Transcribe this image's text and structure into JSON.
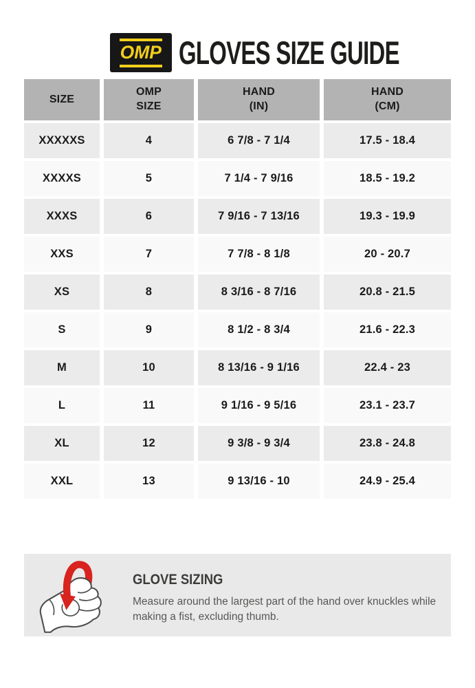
{
  "header": {
    "logo_text": "OMP",
    "title": "GLOVES SIZE GUIDE"
  },
  "table": {
    "columns": [
      "SIZE",
      "OMP\nSIZE",
      "HAND\n(IN)",
      "HAND\n(CM)"
    ],
    "rows": [
      {
        "size": "XXXXXS",
        "omp_size": "4",
        "hand_in": "6 7/8 - 7 1/4",
        "hand_cm": "17.5 - 18.4"
      },
      {
        "size": "XXXXS",
        "omp_size": "5",
        "hand_in": "7 1/4 - 7 9/16",
        "hand_cm": "18.5 - 19.2"
      },
      {
        "size": "XXXS",
        "omp_size": "6",
        "hand_in": "7 9/16 - 7 13/16",
        "hand_cm": "19.3 - 19.9"
      },
      {
        "size": "XXS",
        "omp_size": "7",
        "hand_in": "7 7/8 - 8 1/8",
        "hand_cm": "20 - 20.7"
      },
      {
        "size": "XS",
        "omp_size": "8",
        "hand_in": "8 3/16 - 8 7/16",
        "hand_cm": "20.8 - 21.5"
      },
      {
        "size": "S",
        "omp_size": "9",
        "hand_in": "8 1/2 - 8 3/4",
        "hand_cm": "21.6 - 22.3"
      },
      {
        "size": "M",
        "omp_size": "10",
        "hand_in": "8 13/16 - 9 1/16",
        "hand_cm": "22.4 - 23"
      },
      {
        "size": "L",
        "omp_size": "11",
        "hand_in": "9 1/16 - 9 5/16",
        "hand_cm": "23.1 - 23.7"
      },
      {
        "size": "XL",
        "omp_size": "12",
        "hand_in": "9 3/8 - 9 3/4",
        "hand_cm": "23.8 - 24.8"
      },
      {
        "size": "XXL",
        "omp_size": "13",
        "hand_in": "9 13/16 - 10",
        "hand_cm": "24.9 - 25.4"
      }
    ]
  },
  "sizing_note": {
    "heading": "GLOVE SIZING",
    "body": "Measure around the largest part of the hand over knuckles while\nmaking a fist, excluding thumb."
  },
  "colors": {
    "logo_yellow": "#f2cf1d",
    "logo_black": "#171717",
    "header_cell_bg": "#b3b3b3",
    "row_odd_bg": "#ebebeb",
    "row_even_bg": "#f9f9f9",
    "note_bg": "#e9e9e9",
    "tape_red": "#d8231f"
  }
}
